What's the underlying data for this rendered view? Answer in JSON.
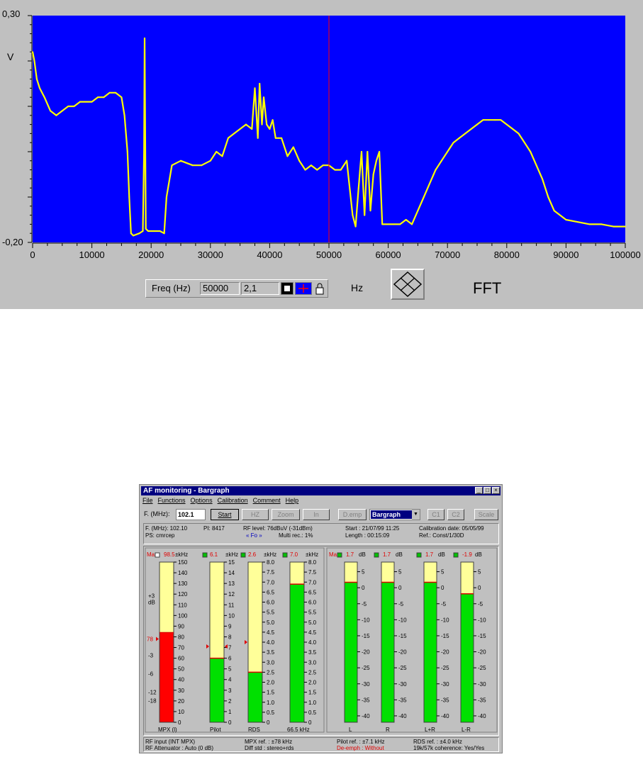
{
  "fft_panel": {
    "freq_box": {
      "label": "Freq (Hz)",
      "frequency_value": "50000",
      "amplitude_value": "2,1"
    },
    "unit_label": "Hz",
    "mode_label": "FFT"
  },
  "chart_data": {
    "type": "line",
    "title": "",
    "ylabel": "V",
    "xlabel": "",
    "xlim": [
      0,
      100000
    ],
    "ylim": [
      -0.2,
      0.3
    ],
    "y_tick_labels": [
      "0,30",
      "-0,20"
    ],
    "x_tick_labels": [
      "0",
      "10000",
      "20000",
      "30000",
      "40000",
      "50000",
      "60000",
      "70000",
      "80000",
      "90000",
      "100000"
    ],
    "x_ticks": [
      0,
      10000,
      20000,
      30000,
      40000,
      50000,
      60000,
      70000,
      80000,
      90000,
      100000
    ],
    "cursor_x": 50000,
    "background_color": "#0000ff",
    "line_color": "#ffff00",
    "cursor_color": "#ff0000",
    "grid": false,
    "series": [
      {
        "x": [
          0,
          300,
          700,
          1200,
          2000,
          3000,
          4000,
          5000,
          6000,
          7000,
          8000,
          9000,
          10000,
          11000,
          12000,
          13000,
          14000,
          15000,
          15500,
          16000,
          16300,
          16600,
          17000,
          18000,
          18600,
          18800,
          18900,
          19100,
          19500,
          20500,
          21500,
          22200,
          22600,
          23500,
          25000,
          27000,
          28500,
          30000,
          31000,
          32000,
          33000,
          34000,
          35000,
          36000,
          37000,
          37500,
          38000,
          38300,
          38700,
          39000,
          39500,
          40000,
          40500,
          41000,
          41500,
          42000,
          43000,
          44000,
          45000,
          46000,
          47000,
          48000,
          49000,
          50000,
          51000,
          52000,
          53000,
          54000,
          54500,
          55000,
          55500,
          56000,
          56500,
          57000,
          57500,
          58000,
          58500,
          59000,
          60000,
          61000,
          62000,
          63000,
          64000,
          65000,
          66000,
          67000,
          68000,
          69000,
          70000,
          71000,
          72000,
          73000,
          74000,
          75000,
          76000,
          77000,
          78000,
          79000,
          80000,
          81000,
          82000,
          83000,
          84000,
          85000,
          86000,
          87000,
          88000,
          90000,
          92000,
          94000,
          96000,
          98000,
          100000
        ],
        "y": [
          0.22,
          0.2,
          0.16,
          0.14,
          0.12,
          0.09,
          0.08,
          0.09,
          0.1,
          0.1,
          0.11,
          0.11,
          0.11,
          0.12,
          0.12,
          0.13,
          0.13,
          0.12,
          0.08,
          0.0,
          -0.1,
          -0.18,
          -0.185,
          -0.18,
          -0.175,
          0.0,
          0.25,
          -0.17,
          -0.175,
          -0.175,
          -0.175,
          -0.18,
          -0.1,
          -0.03,
          -0.02,
          -0.03,
          -0.03,
          -0.02,
          0.0,
          -0.01,
          0.03,
          0.04,
          0.05,
          0.06,
          0.05,
          0.14,
          0.03,
          0.15,
          0.06,
          0.12,
          0.06,
          0.05,
          0.07,
          0.03,
          0.03,
          0.03,
          -0.01,
          0.01,
          -0.02,
          -0.04,
          -0.03,
          -0.04,
          -0.03,
          -0.03,
          -0.04,
          -0.04,
          -0.02,
          -0.14,
          -0.165,
          -0.08,
          0.0,
          -0.14,
          0.0,
          -0.13,
          -0.05,
          -0.02,
          0.0,
          -0.16,
          -0.16,
          -0.16,
          -0.16,
          -0.15,
          -0.16,
          -0.13,
          -0.1,
          -0.07,
          -0.04,
          -0.02,
          0.0,
          0.02,
          0.03,
          0.04,
          0.05,
          0.06,
          0.07,
          0.07,
          0.07,
          0.07,
          0.06,
          0.05,
          0.04,
          0.02,
          0.0,
          -0.03,
          -0.06,
          -0.1,
          -0.13,
          -0.15,
          -0.155,
          -0.16,
          -0.16,
          -0.165,
          -0.165
        ]
      }
    ]
  },
  "af_window": {
    "title": "AF monitoring - Bargraph",
    "window_buttons": [
      "_",
      "□",
      "×"
    ],
    "menu": [
      "File",
      "Functions",
      "Options",
      "Calibration",
      "Comment",
      "Help"
    ],
    "toolbar": {
      "freq_label": "F. (MHz):",
      "freq_value": "102.1",
      "start": "Start",
      "hz": "HZ",
      "zoom": "Zoom",
      "in": "In",
      "d_emp": "D.emp",
      "view_select": "Bargraph",
      "c1": "C1",
      "c2": "C2",
      "scale": "Scale"
    },
    "info": {
      "fmhz": "F. (MHz): 102.10",
      "ps": "PS: cmrcep",
      "pi": "PI: 8417",
      "rf_level": "RF level: 76dBuV (-31dBm)",
      "fo": "« Fo »",
      "multi": "Multi rec.: 1%",
      "start": "Start : 21/07/99 11:25",
      "length": "Length : 00:15:09",
      "calib": "Calibration date: 05/05/99",
      "ref": "Ref.: Const/1/30D"
    },
    "left_group": {
      "max_label": "Max",
      "db_label": "dB",
      "db_ticks": [
        "+3",
        "-3",
        "-6",
        "-12",
        "-18"
      ],
      "marker_label": "78",
      "bars": [
        {
          "name": "MPX (l)",
          "max": "98.5",
          "unit": "±kHz",
          "full_scale": 150,
          "value": 84,
          "fill": "#ff0000",
          "ticks": [
            "150",
            "140",
            "130",
            "120",
            "110",
            "100",
            "90",
            "80",
            "70",
            "60",
            "50",
            "40",
            "30",
            "20",
            "10",
            "0"
          ]
        },
        {
          "name": "Pilot",
          "max": "6.1",
          "unit": "±kHz",
          "full_scale": 15,
          "value": 6.0,
          "fill": "#00e000",
          "ticks": [
            "15",
            "14",
            "13",
            "12",
            "11",
            "10",
            "9",
            "8",
            "7",
            "6",
            "5",
            "4",
            "3",
            "2",
            "1",
            "0"
          ]
        },
        {
          "name": "RDS",
          "max": "2.6",
          "unit": "±kHz",
          "full_scale": 8,
          "value": 2.5,
          "fill": "#00e000",
          "ticks": [
            "8.0",
            "7.5",
            "7.0",
            "6.5",
            "6.0",
            "5.5",
            "5.0",
            "4.5",
            "4.0",
            "3.5",
            "3.0",
            "2.5",
            "2.0",
            "1.5",
            "1.0",
            "0.5",
            "0"
          ]
        },
        {
          "name": "66.5 kHz",
          "max": "7.0",
          "unit": "±kHz",
          "full_scale": 8,
          "value": 6.9,
          "fill": "#00e000",
          "ticks": [
            "8.0",
            "7.5",
            "7.0",
            "6.5",
            "6.0",
            "5.5",
            "5.0",
            "4.5",
            "4.0",
            "3.5",
            "3.0",
            "2.5",
            "2.0",
            "1.5",
            "1.0",
            "0.5",
            "0"
          ]
        }
      ]
    },
    "right_group": {
      "max_label": "Max",
      "bars": [
        {
          "name": "L",
          "max": "1.7",
          "unit": "dB",
          "value": 1.7
        },
        {
          "name": "R",
          "max": "1.7",
          "unit": "dB",
          "value": 1.7
        },
        {
          "name": "L+R",
          "max": "1.7",
          "unit": "dB",
          "value": 1.7
        },
        {
          "name": "L-R",
          "max": "-1.9",
          "unit": "dB",
          "value": -1.9
        }
      ],
      "db_min": -42,
      "db_max": 8,
      "ticks": [
        "5",
        "0",
        "-5",
        "-10",
        "-15",
        "-20",
        "-25",
        "-30",
        "-35",
        "-40"
      ]
    },
    "status": {
      "rf_input": "RF input (INT MPX)",
      "rf_att": "RF Attenuator : Auto (0 dB)",
      "mpx_ref": "MPX ref. : ±78 kHz",
      "diff_std": "Diff std : stereo+rds",
      "pilot_ref": "Pilot ref. : ±7.1 kHz",
      "de_emph": "De-emph : Without",
      "rds_ref": "RDS ref. : ±4.0 kHz",
      "coherence": "19k/57k coherence: Yes/Yes"
    }
  }
}
